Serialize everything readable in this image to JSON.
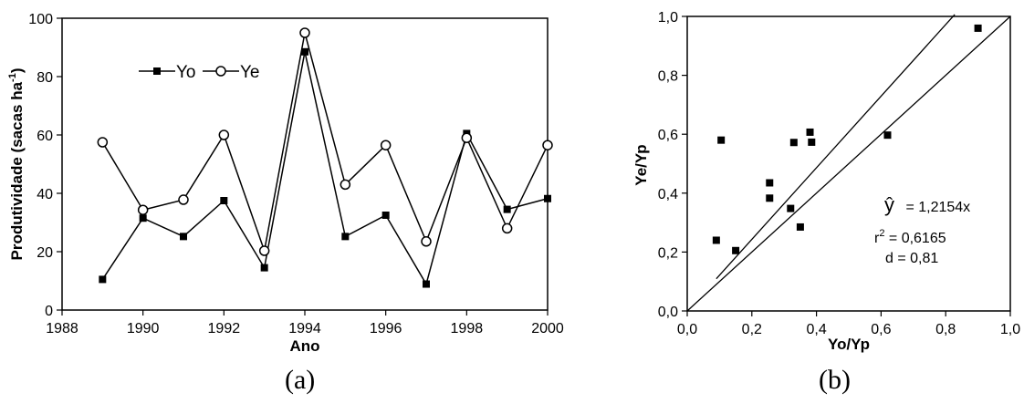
{
  "chart_data": [
    {
      "type": "line",
      "panel_label": "(a)",
      "xlabel": "Ano",
      "ylabel": "Produtividade (sacas ha",
      "ylabel_sup": "-1",
      "ylabel_tail": ")",
      "xlim": [
        1988,
        2000
      ],
      "ylim": [
        0,
        100
      ],
      "xticks": [
        1988,
        1990,
        1992,
        1994,
        1996,
        1998,
        2000
      ],
      "yticks": [
        0,
        20,
        40,
        60,
        80,
        100
      ],
      "grid": false,
      "legend_position": "top-left",
      "x": [
        1989,
        1990,
        1991,
        1992,
        1993,
        1994,
        1995,
        1996,
        1997,
        1998,
        1999,
        2000
      ],
      "series": [
        {
          "name": "Yo",
          "marker": "filled-square",
          "values": [
            10.5,
            31.5,
            25.2,
            37.5,
            14.5,
            88.5,
            25.2,
            32.5,
            8.9,
            60.5,
            34.5,
            38.2
          ]
        },
        {
          "name": "Ye",
          "marker": "open-circle",
          "values": [
            57.5,
            34.3,
            37.8,
            60.0,
            20.3,
            95.0,
            43.0,
            56.5,
            23.5,
            59.0,
            28.0,
            56.5
          ]
        }
      ]
    },
    {
      "type": "scatter",
      "panel_label": "(b)",
      "xlabel": "Yo/Yp",
      "ylabel": "Ye/Yp",
      "xlim": [
        0,
        1
      ],
      "ylim": [
        0,
        1
      ],
      "xticks": [
        "0,0",
        "0,2",
        "0,4",
        "0,6",
        "0,8",
        "1,0"
      ],
      "yticks": [
        "0,0",
        "0,2",
        "0,4",
        "0,6",
        "0,8",
        "1,0"
      ],
      "grid": false,
      "points": [
        [
          0.09,
          0.24
        ],
        [
          0.105,
          0.58
        ],
        [
          0.15,
          0.205
        ],
        [
          0.255,
          0.435
        ],
        [
          0.255,
          0.383
        ],
        [
          0.32,
          0.348
        ],
        [
          0.33,
          0.572
        ],
        [
          0.35,
          0.285
        ],
        [
          0.38,
          0.607
        ],
        [
          0.385,
          0.573
        ],
        [
          0.62,
          0.597
        ],
        [
          0.9,
          0.96
        ]
      ],
      "lines": [
        {
          "name": "1:1",
          "slope": 1.0,
          "x_range": [
            0,
            1
          ]
        },
        {
          "name": "fit",
          "slope": 1.2154,
          "x_range": [
            0.09,
            0.828
          ]
        }
      ],
      "equation": {
        "yhat_symbol": "ŷ",
        "yhat_rest": " = 1,2154x",
        "r2_base": "r",
        "r2_sup": "2",
        "r2_rest": " = 0,6165",
        "d_text": "d = 0,81"
      }
    }
  ]
}
